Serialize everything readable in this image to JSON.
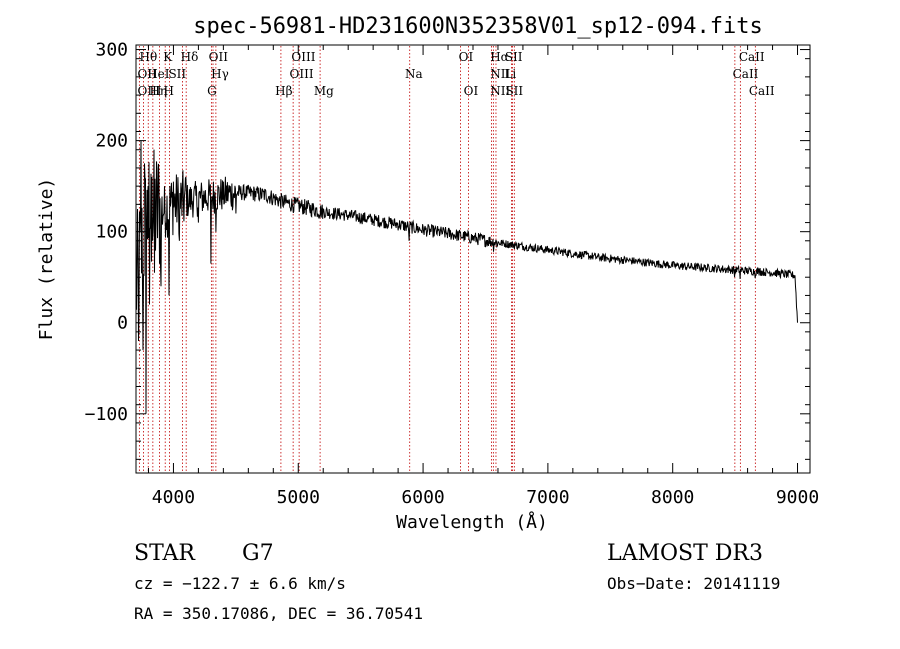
{
  "chart_data": {
    "type": "line",
    "title": "spec-56981-HD231600N352358V01_sp12-094.fits",
    "xlabel": "Wavelength (Å)",
    "ylabel": "Flux (relative)",
    "xlim": [
      3700,
      9100
    ],
    "ylim": [
      -165,
      305
    ],
    "xticks": [
      4000,
      5000,
      6000,
      7000,
      8000,
      9000
    ],
    "xtick_labels": [
      "4000",
      "5000",
      "6000",
      "7000",
      "8000",
      "9000"
    ],
    "yticks": [
      -100,
      0,
      100,
      200,
      300
    ],
    "ytick_labels": [
      "−100",
      "0",
      "100",
      "200",
      "300"
    ],
    "continuum": [
      [
        3700,
        40
      ],
      [
        3780,
        110
      ],
      [
        3850,
        120
      ],
      [
        3950,
        128
      ],
      [
        4050,
        132
      ],
      [
        4150,
        135
      ],
      [
        4250,
        138
      ],
      [
        4350,
        140
      ],
      [
        4450,
        142
      ],
      [
        4550,
        143
      ],
      [
        4650,
        142
      ],
      [
        4750,
        140
      ],
      [
        4850,
        134
      ],
      [
        4950,
        130
      ],
      [
        5050,
        127
      ],
      [
        5200,
        122
      ],
      [
        5400,
        118
      ],
      [
        5600,
        113
      ],
      [
        5800,
        108
      ],
      [
        6000,
        102
      ],
      [
        6200,
        98
      ],
      [
        6400,
        93
      ],
      [
        6600,
        88
      ],
      [
        6800,
        84
      ],
      [
        7000,
        80
      ],
      [
        7200,
        76
      ],
      [
        7400,
        72
      ],
      [
        7600,
        69
      ],
      [
        7800,
        66
      ],
      [
        8000,
        63
      ],
      [
        8200,
        61
      ],
      [
        8400,
        59
      ],
      [
        8600,
        57
      ],
      [
        8800,
        55
      ],
      [
        8980,
        52
      ],
      [
        9000,
        0
      ]
    ],
    "spikes": [
      [
        3720,
        -20
      ],
      [
        3740,
        200
      ],
      [
        3755,
        -30
      ],
      [
        3768,
        175
      ],
      [
        3780,
        -100
      ],
      [
        3795,
        150
      ],
      [
        3810,
        20
      ],
      [
        3830,
        160
      ],
      [
        3850,
        55
      ],
      [
        3875,
        140
      ],
      [
        3900,
        40
      ],
      [
        3930,
        150
      ],
      [
        3965,
        30
      ],
      [
        4000,
        155
      ],
      [
        4050,
        90
      ],
      [
        4100,
        160
      ],
      [
        4200,
        110
      ],
      [
        4300,
        65
      ],
      [
        4340,
        100
      ],
      [
        4400,
        155
      ],
      [
        4500,
        120
      ],
      [
        5890,
        90
      ],
      [
        6563,
        78
      ],
      [
        8498,
        50
      ],
      [
        8542,
        48
      ],
      [
        8662,
        49
      ],
      [
        8700,
        60
      ]
    ],
    "lines": [
      {
        "label": "Hθ",
        "x": 3798,
        "row": 1,
        "ax": 3728
      },
      {
        "label": "K",
        "x": 3934,
        "row": 1,
        "ax": 3918
      },
      {
        "label": "Hδ",
        "x": 4102,
        "row": 1,
        "ax": 4058
      },
      {
        "label": "OII",
        "x": 3727,
        "row": 2,
        "ax": 3712
      },
      {
        "label": "HeI",
        "x": 3889,
        "row": 2,
        "ax": 3790
      },
      {
        "label": "SII",
        "x": 4072,
        "row": 2,
        "ax": 3960
      },
      {
        "label": "OIII",
        "x": 3760,
        "row": 3,
        "ax": 3712
      },
      {
        "label": "Hη",
        "x": 3835,
        "row": 3,
        "ax": 3808
      },
      {
        "label": "H",
        "x": 3968,
        "row": 3,
        "ax": 3920
      },
      {
        "label": "OII",
        "x": 4317,
        "row": 1,
        "ax": 4282
      },
      {
        "label": "Hγ",
        "x": 4340,
        "row": 2,
        "ax": 4302
      },
      {
        "label": "G",
        "x": 4304,
        "row": 3,
        "ax": 4270
      },
      {
        "label": "Hβ",
        "x": 4861,
        "row": 3,
        "ax": 4815
      },
      {
        "label": "OIII",
        "x": 4959,
        "row": 2,
        "ax": 4930
      },
      {
        "label": "OIII",
        "x": 5007,
        "row": 1,
        "ax": 4945
      },
      {
        "label": "Mg",
        "x": 5175,
        "row": 3,
        "ax": 5125
      },
      {
        "label": "Na",
        "x": 5893,
        "row": 2,
        "ax": 5855
      },
      {
        "label": "OI",
        "x": 6300,
        "row": 1,
        "ax": 6285
      },
      {
        "label": "OI",
        "x": 6364,
        "row": 3,
        "ax": 6325
      },
      {
        "label": "Hα",
        "x": 6563,
        "row": 1,
        "ax": 6538
      },
      {
        "label": "NII",
        "x": 6548,
        "row": 2,
        "ax": 6538
      },
      {
        "label": "NII",
        "x": 6584,
        "row": 3,
        "ax": 6538
      },
      {
        "label": "SII",
        "x": 6717,
        "row": 1,
        "ax": 6655
      },
      {
        "label": "Li",
        "x": 6708,
        "row": 2,
        "ax": 6652
      },
      {
        "label": "SII",
        "x": 6731,
        "row": 3,
        "ax": 6660
      },
      {
        "label": "CaII",
        "x": 8498,
        "row": 2,
        "ax": 8480
      },
      {
        "label": "CaII",
        "x": 8542,
        "row": 1,
        "ax": 8530
      },
      {
        "label": "CaII",
        "x": 8662,
        "row": 3,
        "ax": 8610
      }
    ]
  },
  "info": {
    "class_label": "STAR",
    "subclass": "G7",
    "release": "LAMOST DR3",
    "cz": "cz = −122.7 ± 6.6 km/s",
    "obs_date": "Obs−Date: 20141119",
    "coords": "RA = 350.17086, DEC =  36.70541"
  }
}
